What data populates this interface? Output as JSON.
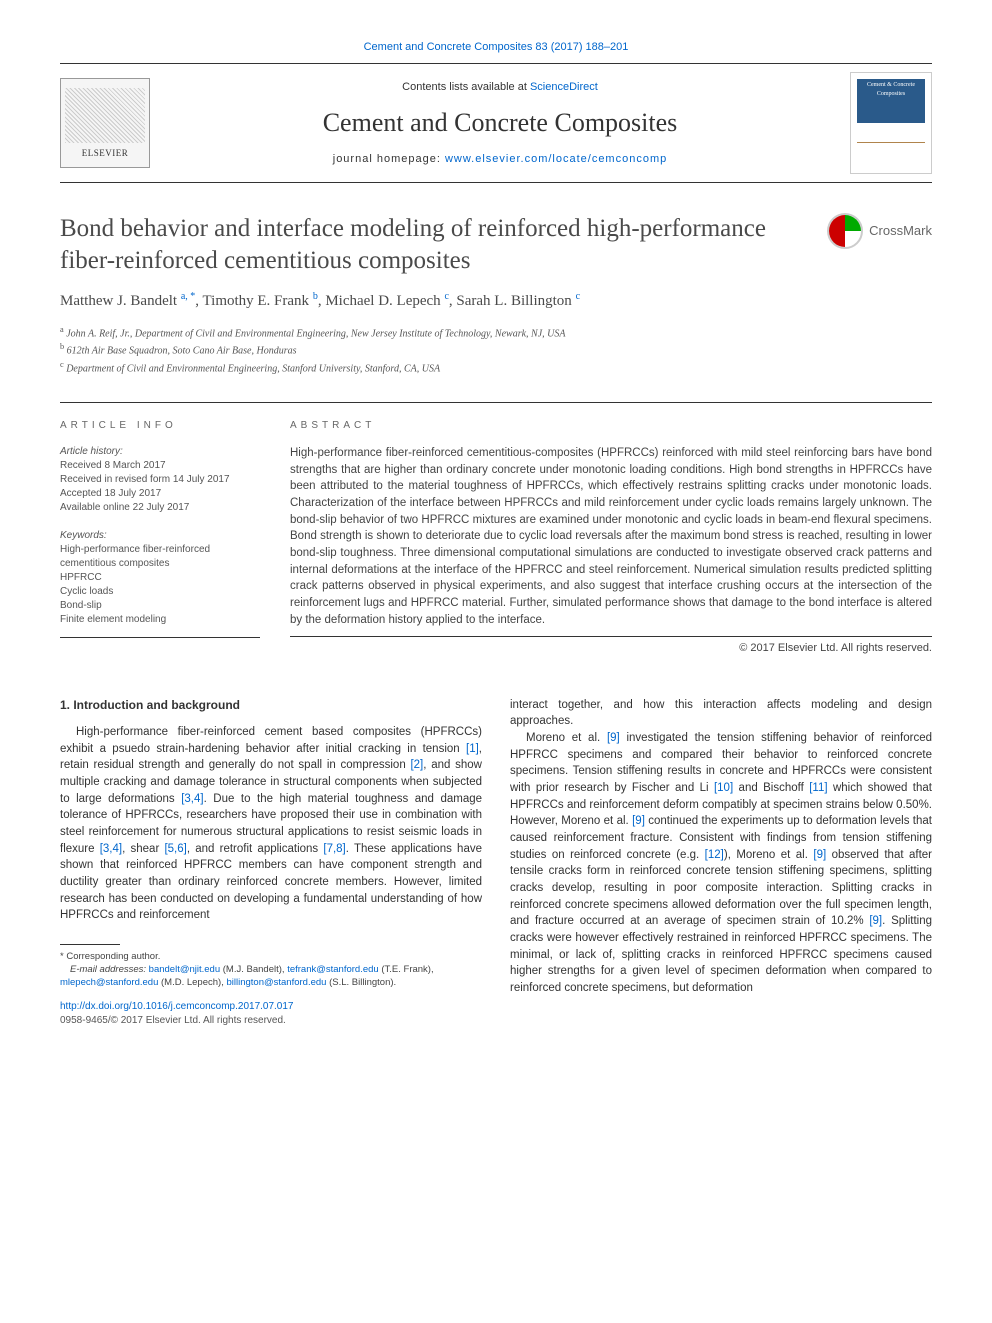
{
  "header": {
    "top_citation": "Cement and Concrete Composites 83 (2017) 188–201",
    "contents_prefix": "Contents lists available at ",
    "contents_link": "ScienceDirect",
    "journal_name": "Cement and Concrete Composites",
    "homepage_prefix": "journal homepage: ",
    "homepage_link": "www.elsevier.com/locate/cemconcomp",
    "elsevier_label": "ELSEVIER",
    "cover_text": "Cement & Concrete Composites"
  },
  "title": "Bond behavior and interface modeling of reinforced high-performance fiber-reinforced cementitious composites",
  "crossmark_label": "CrossMark",
  "authors_html": "Matthew J. Bandelt <sup>a, *</sup>, Timothy E. Frank <sup>b</sup>, Michael D. Lepech <sup>c</sup>, Sarah L. Billington <sup>c</sup>",
  "affiliations": {
    "a": "John A. Reif, Jr., Department of Civil and Environmental Engineering, New Jersey Institute of Technology, Newark, NJ, USA",
    "b": "612th Air Base Squadron, Soto Cano Air Base, Honduras",
    "c": "Department of Civil and Environmental Engineering, Stanford University, Stanford, CA, USA"
  },
  "article_info": {
    "heading": "ARTICLE INFO",
    "history_label": "Article history:",
    "history": [
      "Received 8 March 2017",
      "Received in revised form 14 July 2017",
      "Accepted 18 July 2017",
      "Available online 22 July 2017"
    ],
    "keywords_label": "Keywords:",
    "keywords": [
      "High-performance fiber-reinforced cementitious composites",
      "HPFRCC",
      "Cyclic loads",
      "Bond-slip",
      "Finite element modeling"
    ]
  },
  "abstract": {
    "heading": "ABSTRACT",
    "text": "High-performance fiber-reinforced cementitious-composites (HPFRCCs) reinforced with mild steel reinforcing bars have bond strengths that are higher than ordinary concrete under monotonic loading conditions. High bond strengths in HPFRCCs have been attributed to the material toughness of HPFRCCs, which effectively restrains splitting cracks under monotonic loads. Characterization of the interface between HPFRCCs and mild reinforcement under cyclic loads remains largely unknown. The bond-slip behavior of two HPFRCC mixtures are examined under monotonic and cyclic loads in beam-end flexural specimens. Bond strength is shown to deteriorate due to cyclic load reversals after the maximum bond stress is reached, resulting in lower bond-slip toughness. Three dimensional computational simulations are conducted to investigate observed crack patterns and internal deformations at the interface of the HPFRCC and steel reinforcement. Numerical simulation results predicted splitting crack patterns observed in physical experiments, and also suggest that interface crushing occurs at the intersection of the reinforcement lugs and HPFRCC material. Further, simulated performance shows that damage to the bond interface is altered by the deformation history applied to the interface.",
    "copyright": "© 2017 Elsevier Ltd. All rights reserved."
  },
  "body": {
    "section_heading": "1. Introduction and background",
    "col1_p1a": "High-performance fiber-reinforced cement based composites (HPFRCCs) exhibit a psuedo strain-hardening behavior after initial cracking in tension ",
    "ref1": "[1]",
    "col1_p1b": ", retain residual strength and generally do not spall in compression ",
    "ref2": "[2]",
    "col1_p1c": ", and show multiple cracking and damage tolerance in structural components when subjected to large deformations ",
    "ref34a": "[3,4]",
    "col1_p1d": ". Due to the high material toughness and damage tolerance of HPFRCCs, researchers have proposed their use in combination with steel reinforcement for numerous structural applications to resist seismic loads in flexure ",
    "ref34b": "[3,4]",
    "col1_p1e": ", shear ",
    "ref56": "[5,6]",
    "col1_p1f": ", and retrofit applications ",
    "ref78": "[7,8]",
    "col1_p1g": ". These applications have shown that reinforced HPFRCC members can have component strength and ductility greater than ordinary reinforced concrete members. However, limited research has been conducted on developing a fundamental understanding of how HPFRCCs and reinforcement",
    "col2_p0": "interact together, and how this interaction affects modeling and design approaches.",
    "col2_p1a": "Moreno et al. ",
    "ref9a": "[9]",
    "col2_p1b": " investigated the tension stiffening behavior of reinforced HPFRCC specimens and compared their behavior to reinforced concrete specimens. Tension stiffening results in concrete and HPFRCCs were consistent with prior research by Fischer and Li ",
    "ref10": "[10]",
    "col2_p1c": " and Bischoff ",
    "ref11": "[11]",
    "col2_p1d": " which showed that HPFRCCs and reinforcement deform compatibly at specimen strains below 0.50%. However, Moreno et al. ",
    "ref9b": "[9]",
    "col2_p1e": " continued the experiments up to deformation levels that caused reinforcement fracture. Consistent with findings from tension stiffening studies on reinforced concrete (e.g. ",
    "ref12": "[12]",
    "col2_p1f": "), Moreno et al. ",
    "ref9c": "[9]",
    "col2_p1g": " observed that after tensile cracks form in reinforced concrete tension stiffening specimens, splitting cracks develop, resulting in poor composite interaction. Splitting cracks in reinforced concrete specimens allowed deformation over the full specimen length, and fracture occurred at an average of specimen strain of 10.2% ",
    "ref9d": "[9]",
    "col2_p1h": ". Splitting cracks were however effectively restrained in reinforced HPFRCC specimens. The minimal, or lack of, splitting cracks in reinforced HPFRCC specimens caused higher strengths for a given level of specimen deformation when compared to reinforced concrete specimens, but deformation"
  },
  "footnotes": {
    "corresponding": "* Corresponding author.",
    "emails_label": "E-mail addresses:",
    "e1": "bandelt@njit.edu",
    "n1": " (M.J. Bandelt), ",
    "e2": "tefrank@stanford.edu",
    "n2": " (T.E. Frank), ",
    "e3": "mlepech@stanford.edu",
    "n3": " (M.D. Lepech), ",
    "e4": "billington@stanford.edu",
    "n4": " (S.L. Billington).",
    "doi": "http://dx.doi.org/10.1016/j.cemconcomp.2017.07.017",
    "issn_copy": "0958-9465/© 2017 Elsevier Ltd. All rights reserved."
  },
  "colors": {
    "link": "#0066cc",
    "text": "#333333",
    "journal_blue": "#2a5a8a"
  }
}
